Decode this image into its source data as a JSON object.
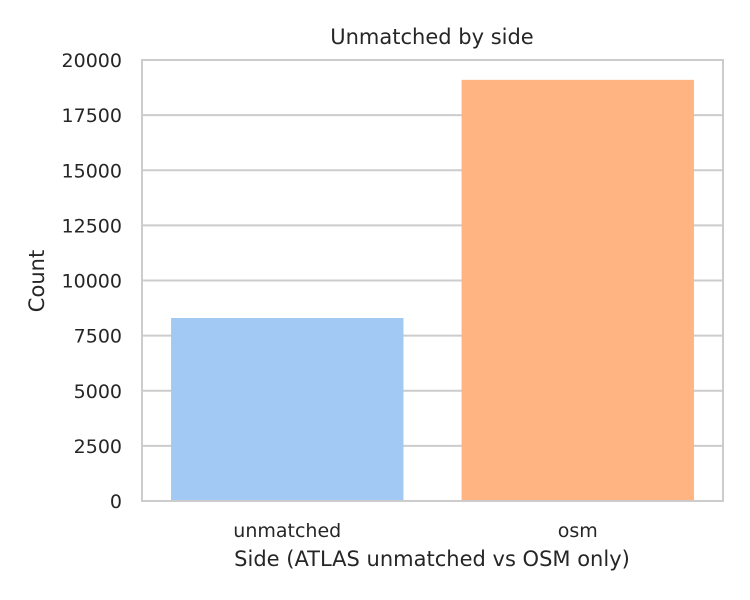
{
  "chart_data": {
    "type": "bar",
    "title": "Unmatched by side",
    "xlabel": "Side (ATLAS unmatched vs OSM only)",
    "ylabel": "Count",
    "categories": [
      "unmatched",
      "osm"
    ],
    "values": [
      8300,
      19100
    ],
    "bar_colors": [
      "#a1c9f4",
      "#ffb482"
    ],
    "ylim": [
      0,
      20000
    ],
    "yticks": [
      0,
      2500,
      5000,
      7500,
      10000,
      12500,
      15000,
      17500,
      20000
    ],
    "ytick_labels": [
      "0",
      "2500",
      "5000",
      "7500",
      "10000",
      "12500",
      "15000",
      "17500",
      "20000"
    ],
    "grid": "horizontal",
    "grid_color": "#cccccc",
    "frame_color": "#cccccc",
    "legend": "none"
  }
}
